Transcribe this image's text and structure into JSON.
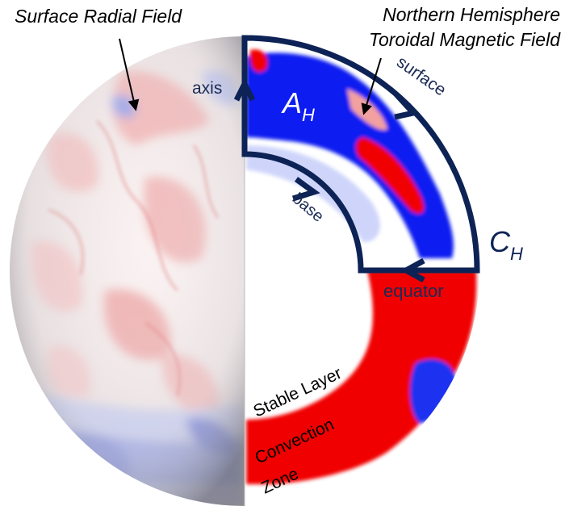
{
  "labels": {
    "surface_radial_field": "Surface Radial Field",
    "northern_hemisphere_line1": "Northern Hemisphere",
    "northern_hemisphere_line2": "Toroidal Magnetic Field",
    "axis": "axis",
    "surface": "surface",
    "base": "base",
    "equator": "equator",
    "a_h_main": "A",
    "a_h_sub": "H",
    "c_h_main": "C",
    "c_h_sub": "H",
    "stable_layer": "Stable Layer",
    "convection": "Convection",
    "zone": "Zone"
  },
  "colors": {
    "outline": "#0d2356",
    "field_positive": "#f00000",
    "field_negative": "#0a1ef0",
    "label_dark": "#1b2b55"
  }
}
